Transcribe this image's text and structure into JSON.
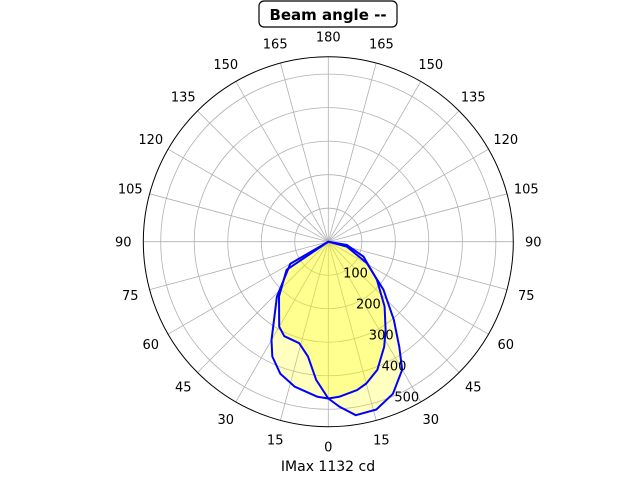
{
  "chart_data": {
    "type": "polar",
    "title": "Beam angle --",
    "xlabel": "IMax 1132 cd",
    "angle_ticks": [
      "0",
      "15",
      "30",
      "45",
      "60",
      "75",
      "90",
      "105",
      "120",
      "135",
      "150",
      "165",
      "180"
    ],
    "radial_ticks": [
      100,
      200,
      300,
      400,
      500
    ],
    "rlim": [
      0,
      552
    ],
    "grid": true,
    "angle_zero": "bottom",
    "angle_note": "negative angles drawn on left side",
    "fill_color": "#ffff00",
    "line_color": "#0000ff",
    "series": [
      {
        "points": [
          [
            -90,
            0
          ],
          [
            -60,
            131
          ],
          [
            -43,
            225
          ],
          [
            -30,
            339
          ],
          [
            -26,
            381
          ],
          [
            -20,
            419
          ],
          [
            -13,
            444
          ],
          [
            -4,
            464
          ],
          [
            0,
            468
          ],
          [
            4,
            464
          ],
          [
            11,
            451
          ],
          [
            15,
            438
          ],
          [
            21,
            409
          ],
          [
            28,
            355
          ],
          [
            33,
            314
          ],
          [
            41,
            256
          ],
          [
            52,
            184
          ],
          [
            67,
            114
          ],
          [
            80,
            56
          ],
          [
            90,
            0
          ]
        ]
      },
      {
        "points": [
          [
            -90,
            0
          ],
          [
            -56,
            150
          ],
          [
            -42,
            220
          ],
          [
            -30,
            293
          ],
          [
            -25,
            311
          ],
          [
            -16,
            315
          ],
          [
            -10,
            348
          ],
          [
            -5,
            414
          ],
          [
            0,
            468
          ],
          [
            4,
            494
          ],
          [
            9,
            524
          ],
          [
            16,
            521
          ],
          [
            23,
            493
          ],
          [
            30,
            441
          ],
          [
            34,
            379
          ],
          [
            40,
            304
          ],
          [
            49,
            218
          ],
          [
            61,
            131
          ],
          [
            75,
            57
          ],
          [
            90,
            0
          ]
        ]
      }
    ]
  }
}
